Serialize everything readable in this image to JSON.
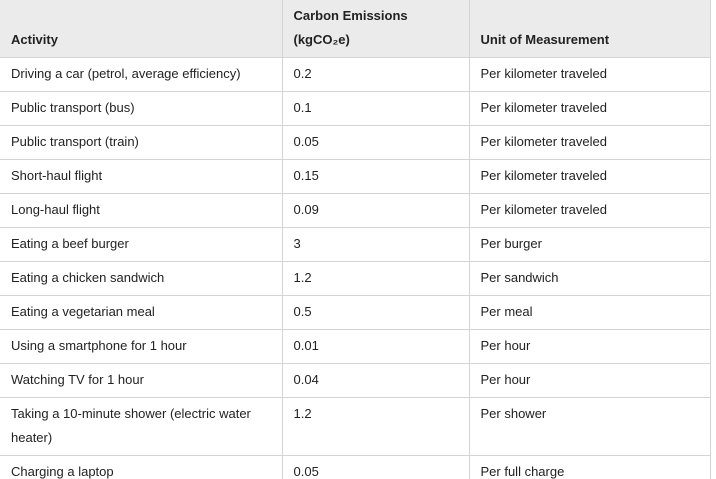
{
  "table": {
    "header": [
      "Activity",
      "Carbon Emissions (kgCO₂e)",
      "Unit of Measurement"
    ],
    "rows": [
      [
        "Driving a car (petrol, average efficiency)",
        "0.2",
        "Per kilometer traveled"
      ],
      [
        "Public transport (bus)",
        "0.1",
        "Per kilometer traveled"
      ],
      [
        "Public transport (train)",
        "0.05",
        "Per kilometer traveled"
      ],
      [
        "Short-haul flight",
        "0.15",
        "Per kilometer traveled"
      ],
      [
        "Long-haul flight",
        "0.09",
        "Per kilometer traveled"
      ],
      [
        "Eating a beef burger",
        "3",
        "Per burger"
      ],
      [
        "Eating a chicken sandwich",
        "1.2",
        "Per sandwich"
      ],
      [
        "Eating a vegetarian meal",
        "0.5",
        "Per meal"
      ],
      [
        "Using a smartphone for 1 hour",
        "0.01",
        "Per hour"
      ],
      [
        "Watching TV for 1 hour",
        "0.04",
        "Per hour"
      ],
      [
        "Taking a 10-minute shower (electric water heater)",
        "1.2",
        "Per shower"
      ],
      [
        "Charging a laptop",
        "0.05",
        "Per full charge"
      ]
    ]
  }
}
